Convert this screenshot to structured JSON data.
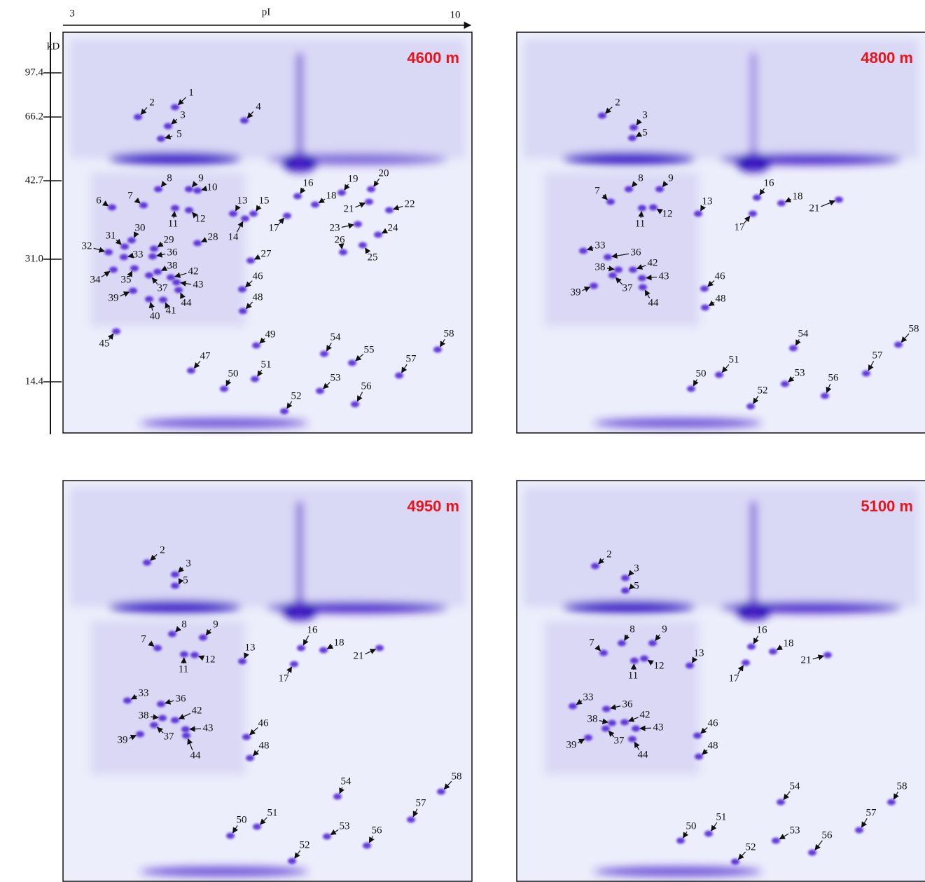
{
  "axis": {
    "pi_start": "3",
    "pi_label": "pI",
    "pi_end": "10",
    "mw_unit": "kD",
    "mw_ticks": [
      "97.4",
      "66.2",
      "42.7",
      "31.0",
      "14.4"
    ]
  },
  "panels": [
    {
      "title": "4600 m",
      "spots": [
        "1",
        "2",
        "3",
        "4",
        "5",
        "6",
        "7",
        "8",
        "9",
        "10",
        "11",
        "12",
        "13",
        "14",
        "15",
        "16",
        "17",
        "18",
        "19",
        "20",
        "21",
        "22",
        "23",
        "24",
        "25",
        "26",
        "27",
        "28",
        "29",
        "30",
        "31",
        "32",
        "33",
        "34",
        "35",
        "36",
        "37",
        "38",
        "39",
        "40",
        "41",
        "42",
        "43",
        "44",
        "45",
        "46",
        "47",
        "48",
        "49",
        "50",
        "51",
        "52",
        "53",
        "54",
        "55",
        "56",
        "57",
        "58"
      ]
    },
    {
      "title": "4800 m",
      "spots": [
        "2",
        "3",
        "5",
        "7",
        "8",
        "9",
        "11",
        "12",
        "13",
        "16",
        "17",
        "18",
        "21",
        "33",
        "36",
        "38",
        "42",
        "43",
        "39",
        "37",
        "44",
        "46",
        "48",
        "54",
        "58",
        "57",
        "51",
        "50",
        "53",
        "56",
        "52"
      ]
    },
    {
      "title": "4950 m",
      "spots": [
        "2",
        "3",
        "5",
        "8",
        "9",
        "7",
        "11",
        "12",
        "13",
        "16",
        "18",
        "21",
        "17",
        "33",
        "36",
        "42",
        "38",
        "43",
        "39",
        "37",
        "44",
        "46",
        "48",
        "54",
        "58",
        "57",
        "51",
        "50",
        "53",
        "56",
        "52"
      ]
    },
    {
      "title": "5100 m",
      "spots": [
        "2",
        "3",
        "5",
        "8",
        "9",
        "7",
        "11",
        "12",
        "13",
        "16",
        "18",
        "21",
        "17",
        "33",
        "36",
        "42",
        "38",
        "43",
        "39",
        "37",
        "44",
        "46",
        "48",
        "54",
        "58",
        "57",
        "51",
        "50",
        "53",
        "56",
        "52"
      ]
    }
  ]
}
